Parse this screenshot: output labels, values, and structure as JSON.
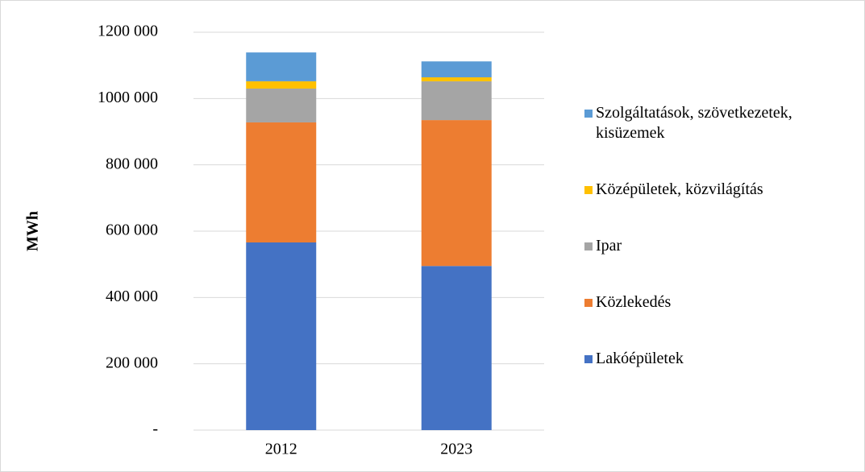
{
  "chart_data": {
    "type": "stacked_bar",
    "y_label": "MWh",
    "categories": [
      "2012",
      "2023"
    ],
    "series": [
      {
        "name": "Lakóépületek",
        "color": "#4472c4",
        "values": [
          566000,
          495000
        ]
      },
      {
        "name": "Közlekedés",
        "color": "#ed7d31",
        "values": [
          362000,
          440000
        ]
      },
      {
        "name": "Ipar",
        "color": "#a5a5a5",
        "values": [
          102000,
          117000
        ]
      },
      {
        "name": "Középületek, közvilágítás",
        "color": "#ffc000",
        "values": [
          22000,
          12000
        ]
      },
      {
        "name": "Szolgáltatások, szövetkezetek, kisüzemek",
        "color": "#5b9bd5",
        "values": [
          87000,
          48000
        ]
      }
    ],
    "ylim": [
      0,
      1200000
    ],
    "yticks": [
      {
        "value": 0,
        "label": "-"
      },
      {
        "value": 200000,
        "label": "200 000"
      },
      {
        "value": 400000,
        "label": "400 000"
      },
      {
        "value": 600000,
        "label": "600 000"
      },
      {
        "value": 800000,
        "label": "800 000"
      },
      {
        "value": 1000000,
        "label": "1000 000"
      },
      {
        "value": 1200000,
        "label": "1200 000"
      }
    ],
    "grid": true,
    "legend": "right"
  }
}
